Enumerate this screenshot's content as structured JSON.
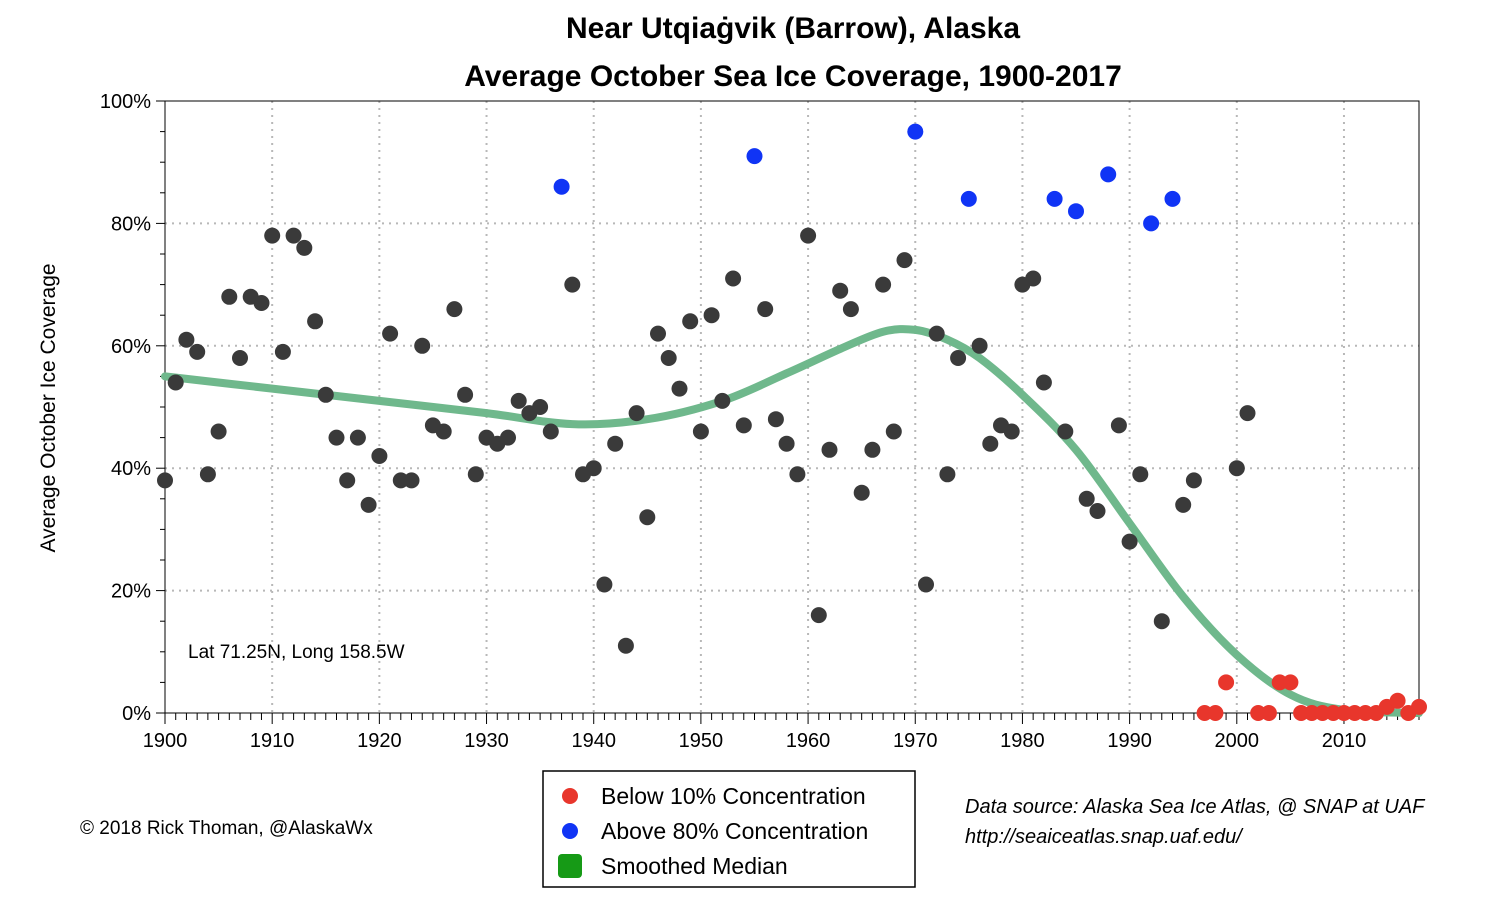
{
  "chart_data": {
    "type": "scatter",
    "title": "Near Utqiaġvik (Barrow), Alaska",
    "subtitle": "Average October Sea Ice Coverage, 1900-2017",
    "ylabel": "Average October Ice Coverage",
    "xlabel": "",
    "xlim": [
      1900,
      2017
    ],
    "ylim": [
      0,
      100
    ],
    "x_ticks": [
      1900,
      1910,
      1920,
      1930,
      1940,
      1950,
      1960,
      1970,
      1980,
      1990,
      2000,
      2010
    ],
    "x_tick_labels": [
      "1900",
      "1910",
      "1920",
      "1930",
      "1940",
      "1950",
      "1960",
      "1970",
      "1980",
      "1990",
      "2000",
      "2010"
    ],
    "y_ticks": [
      0,
      20,
      40,
      60,
      80,
      100
    ],
    "y_tick_labels": [
      "0%",
      "20%",
      "40%",
      "60%",
      "80%",
      "100%"
    ],
    "grid": true,
    "legend_position": "bottom-center",
    "colors": {
      "normal": "#3a3a3a",
      "below": "#e8362c",
      "above": "#1034f5",
      "smooth": "#6fb88c",
      "smooth_legend": "#169a16",
      "grid": "#b8b8b8"
    },
    "series": [
      {
        "name": "Below 10% Concentration",
        "color": "below",
        "points": [
          [
            1997,
            0
          ],
          [
            1998,
            0
          ],
          [
            1999,
            5
          ],
          [
            2002,
            0
          ],
          [
            2003,
            0
          ],
          [
            2004,
            5
          ],
          [
            2005,
            5
          ],
          [
            2006,
            0
          ],
          [
            2007,
            0
          ],
          [
            2008,
            0
          ],
          [
            2009,
            0
          ],
          [
            2010,
            0
          ],
          [
            2011,
            0
          ],
          [
            2012,
            0
          ],
          [
            2013,
            0
          ],
          [
            2014,
            1
          ],
          [
            2015,
            2
          ],
          [
            2016,
            0
          ],
          [
            2017,
            1
          ]
        ]
      },
      {
        "name": "Above 80% Concentration",
        "color": "above",
        "points": [
          [
            1937,
            86
          ],
          [
            1955,
            91
          ],
          [
            1970,
            95
          ],
          [
            1975,
            84
          ],
          [
            1983,
            84
          ],
          [
            1985,
            82
          ],
          [
            1988,
            88
          ],
          [
            1992,
            80
          ],
          [
            1994,
            84
          ]
        ]
      },
      {
        "name": "",
        "color": "normal",
        "points": [
          [
            1900,
            38
          ],
          [
            1901,
            54
          ],
          [
            1902,
            61
          ],
          [
            1903,
            59
          ],
          [
            1904,
            39
          ],
          [
            1905,
            46
          ],
          [
            1906,
            68
          ],
          [
            1907,
            58
          ],
          [
            1908,
            68
          ],
          [
            1909,
            67
          ],
          [
            1910,
            78
          ],
          [
            1911,
            59
          ],
          [
            1912,
            78
          ],
          [
            1913,
            76
          ],
          [
            1914,
            64
          ],
          [
            1915,
            52
          ],
          [
            1916,
            45
          ],
          [
            1917,
            38
          ],
          [
            1918,
            45
          ],
          [
            1919,
            34
          ],
          [
            1920,
            42
          ],
          [
            1921,
            62
          ],
          [
            1922,
            38
          ],
          [
            1923,
            38
          ],
          [
            1924,
            60
          ],
          [
            1925,
            47
          ],
          [
            1926,
            46
          ],
          [
            1927,
            66
          ],
          [
            1928,
            52
          ],
          [
            1929,
            39
          ],
          [
            1930,
            45
          ],
          [
            1931,
            44
          ],
          [
            1932,
            45
          ],
          [
            1933,
            51
          ],
          [
            1934,
            49
          ],
          [
            1935,
            50
          ],
          [
            1936,
            46
          ],
          [
            1938,
            70
          ],
          [
            1939,
            39
          ],
          [
            1940,
            40
          ],
          [
            1941,
            21
          ],
          [
            1942,
            44
          ],
          [
            1943,
            11
          ],
          [
            1944,
            49
          ],
          [
            1945,
            32
          ],
          [
            1946,
            62
          ],
          [
            1947,
            58
          ],
          [
            1948,
            53
          ],
          [
            1949,
            64
          ],
          [
            1950,
            46
          ],
          [
            1951,
            65
          ],
          [
            1952,
            51
          ],
          [
            1953,
            71
          ],
          [
            1954,
            47
          ],
          [
            1956,
            66
          ],
          [
            1957,
            48
          ],
          [
            1958,
            44
          ],
          [
            1959,
            39
          ],
          [
            1960,
            78
          ],
          [
            1961,
            16
          ],
          [
            1962,
            43
          ],
          [
            1963,
            69
          ],
          [
            1964,
            66
          ],
          [
            1965,
            36
          ],
          [
            1966,
            43
          ],
          [
            1967,
            70
          ],
          [
            1968,
            46
          ],
          [
            1969,
            74
          ],
          [
            1971,
            21
          ],
          [
            1972,
            62
          ],
          [
            1973,
            39
          ],
          [
            1974,
            58
          ],
          [
            1976,
            60
          ],
          [
            1977,
            44
          ],
          [
            1978,
            47
          ],
          [
            1979,
            46
          ],
          [
            1980,
            70
          ],
          [
            1981,
            71
          ],
          [
            1982,
            54
          ],
          [
            1984,
            46
          ],
          [
            1986,
            35
          ],
          [
            1987,
            33
          ],
          [
            1989,
            47
          ],
          [
            1990,
            28
          ],
          [
            1991,
            39
          ],
          [
            1993,
            15
          ],
          [
            1995,
            34
          ],
          [
            1996,
            38
          ],
          [
            2000,
            40
          ],
          [
            2001,
            49
          ]
        ]
      }
    ],
    "smoothed": {
      "name": "Smoothed Median",
      "points": [
        [
          1900,
          55
        ],
        [
          1910,
          53
        ],
        [
          1920,
          51
        ],
        [
          1930,
          49
        ],
        [
          1938,
          47.2
        ],
        [
          1945,
          48
        ],
        [
          1952,
          51
        ],
        [
          1958,
          55.5
        ],
        [
          1963,
          59.5
        ],
        [
          1967,
          62.3
        ],
        [
          1970,
          62.6
        ],
        [
          1973,
          61
        ],
        [
          1976,
          58
        ],
        [
          1980,
          52
        ],
        [
          1985,
          43
        ],
        [
          1990,
          31
        ],
        [
          1995,
          19
        ],
        [
          2000,
          9.5
        ],
        [
          2005,
          3
        ],
        [
          2010,
          0.5
        ],
        [
          2017,
          0
        ]
      ]
    },
    "annotation": "Lat 71.25N, Long 158.5W"
  },
  "legend": {
    "below_label": "Below 10% Concentration",
    "above_label": "Above 80% Concentration",
    "smooth_label": "Smoothed Median"
  },
  "footer": {
    "copyright": "© 2018 Rick Thoman, @AlaskaWx",
    "source_line1": "Data source: Alaska Sea Ice Atlas, @ SNAP at UAF",
    "source_line2": "http://seaiceatlas.snap.uaf.edu/"
  }
}
